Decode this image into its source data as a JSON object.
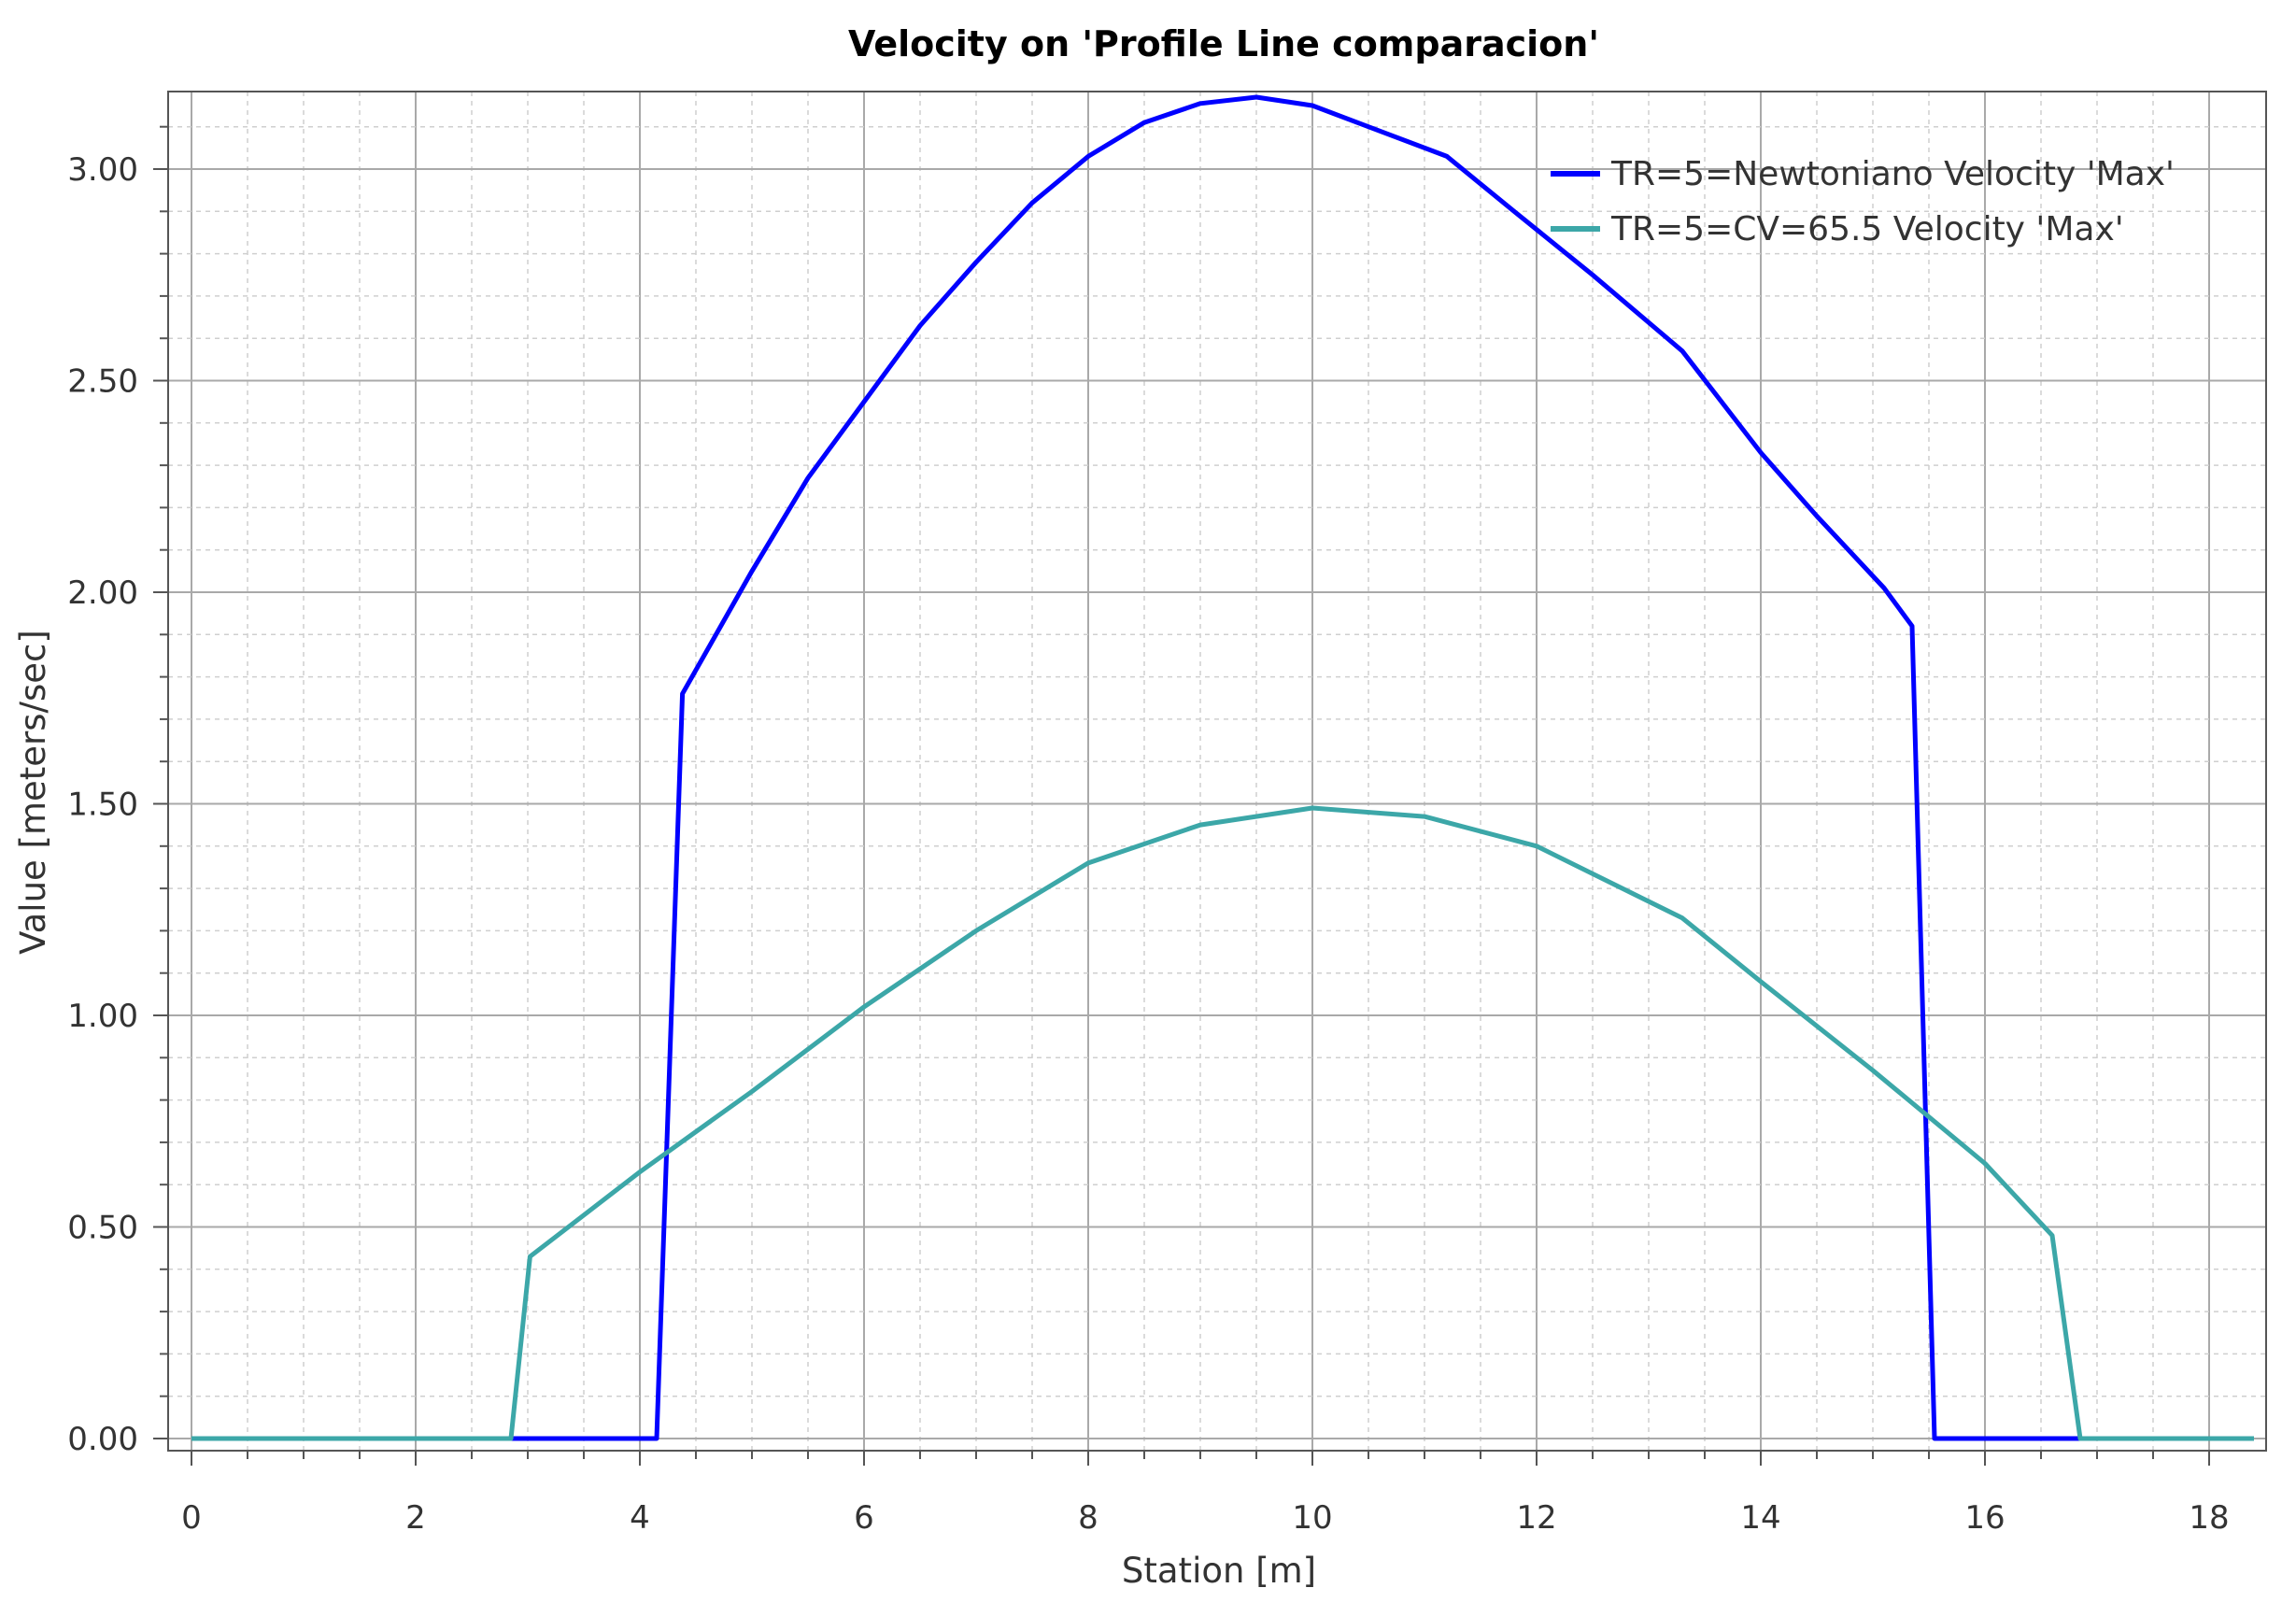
{
  "chart_data": {
    "type": "line",
    "title": "Velocity on 'Profile Line comparacion'",
    "xlabel": "Station [m]",
    "ylabel": "Value [meters/sec]",
    "xlim": [
      0,
      18.4
    ],
    "ylim": [
      -0.03,
      3.2
    ],
    "x_ticks": [
      0,
      2,
      4,
      6,
      8,
      10,
      12,
      14,
      16,
      18
    ],
    "y_ticks": [
      0,
      0.5,
      1.0,
      1.5,
      2.0,
      2.5,
      3.0
    ],
    "x_tick_labels": [
      "0",
      "2",
      "4",
      "6",
      "8",
      "10",
      "12",
      "14",
      "16",
      "18"
    ],
    "y_tick_labels": [
      "0.00",
      "0.50",
      "1.00",
      "1.50",
      "2.00",
      "2.50",
      "3.00"
    ],
    "grid": true,
    "minor_grid": true,
    "legend_position": "top-right",
    "series": [
      {
        "name": "TR=5=Newtoniano Velocity 'Max'",
        "color": "#0000ff",
        "points": [
          [
            0,
            0
          ],
          [
            4.15,
            0
          ],
          [
            4.38,
            1.76
          ],
          [
            5.0,
            2.05
          ],
          [
            5.5,
            2.27
          ],
          [
            6.0,
            2.45
          ],
          [
            6.5,
            2.63
          ],
          [
            7.0,
            2.78
          ],
          [
            7.5,
            2.92
          ],
          [
            8.0,
            3.03
          ],
          [
            8.5,
            3.11
          ],
          [
            9.0,
            3.155
          ],
          [
            9.5,
            3.17
          ],
          [
            10.0,
            3.15
          ],
          [
            10.5,
            3.1
          ],
          [
            11.2,
            3.03
          ],
          [
            11.8,
            2.9
          ],
          [
            12.5,
            2.75
          ],
          [
            13.3,
            2.57
          ],
          [
            14.0,
            2.33
          ],
          [
            14.5,
            2.18
          ],
          [
            15.1,
            2.01
          ],
          [
            15.35,
            1.92
          ],
          [
            15.55,
            0
          ],
          [
            18.4,
            0
          ]
        ]
      },
      {
        "name": "TR=5=CV=65.5 Velocity 'Max'",
        "color": "#3ca7a8",
        "points": [
          [
            0,
            0
          ],
          [
            2.85,
            0
          ],
          [
            3.02,
            0.43
          ],
          [
            4.0,
            0.63
          ],
          [
            5.0,
            0.82
          ],
          [
            6.0,
            1.02
          ],
          [
            7.0,
            1.2
          ],
          [
            8.0,
            1.36
          ],
          [
            9.0,
            1.45
          ],
          [
            10.0,
            1.49
          ],
          [
            11.0,
            1.47
          ],
          [
            12.0,
            1.4
          ],
          [
            13.3,
            1.23
          ],
          [
            14.0,
            1.08
          ],
          [
            15.0,
            0.87
          ],
          [
            16.0,
            0.65
          ],
          [
            16.6,
            0.48
          ],
          [
            16.85,
            0
          ],
          [
            18.4,
            0
          ]
        ]
      }
    ]
  }
}
